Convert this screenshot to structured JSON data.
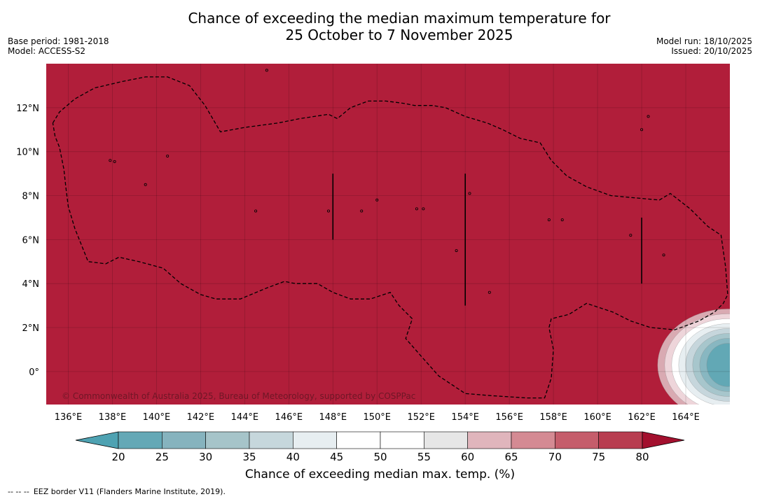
{
  "header": {
    "title_line1": "Chance of exceeding the median maximum temperature for",
    "title_line2": "25 October to 7 November 2025",
    "base_period": "Base period: 1981-2018",
    "model": "Model: ACCESS-S2",
    "model_run": "Model run: 18/10/2025",
    "issued": "Issued: 20/10/2025"
  },
  "map": {
    "background_color": "#b11e3a",
    "lon_range": [
      135.0,
      166.0
    ],
    "lat_range": [
      -1.5,
      14.0
    ],
    "lon_ticks": [
      {
        "value": 136,
        "label": "136°E"
      },
      {
        "value": 138,
        "label": "138°E"
      },
      {
        "value": 140,
        "label": "140°E"
      },
      {
        "value": 142,
        "label": "142°E"
      },
      {
        "value": 144,
        "label": "144°E"
      },
      {
        "value": 146,
        "label": "146°E"
      },
      {
        "value": 148,
        "label": "148°E"
      },
      {
        "value": 150,
        "label": "150°E"
      },
      {
        "value": 152,
        "label": "152°E"
      },
      {
        "value": 154,
        "label": "154°E"
      },
      {
        "value": 156,
        "label": "156°E"
      },
      {
        "value": 158,
        "label": "158°E"
      },
      {
        "value": 160,
        "label": "160°E"
      },
      {
        "value": 162,
        "label": "162°E"
      },
      {
        "value": 164,
        "label": "164°E"
      }
    ],
    "lat_ticks": [
      {
        "value": 0,
        "label": "0°"
      },
      {
        "value": 2,
        "label": "2°N"
      },
      {
        "value": 4,
        "label": "4°N"
      },
      {
        "value": 6,
        "label": "6°N"
      },
      {
        "value": 8,
        "label": "8°N"
      },
      {
        "value": 10,
        "label": "10°N"
      },
      {
        "value": 12,
        "label": "12°N"
      }
    ],
    "copyright": "© Commonwealth of Australia 2025, Bureau of Meteorology, supported by COSPPac",
    "eez_boundary": [
      [
        135.3,
        11.3
      ],
      [
        135.6,
        11.8
      ],
      [
        136.3,
        12.4
      ],
      [
        137.2,
        12.9
      ],
      [
        138.5,
        13.2
      ],
      [
        139.5,
        13.4
      ],
      [
        140.5,
        13.4
      ],
      [
        141.5,
        13.0
      ],
      [
        142.2,
        12.1
      ],
      [
        142.9,
        10.9
      ],
      [
        144.0,
        11.1
      ],
      [
        145.5,
        11.3
      ],
      [
        146.5,
        11.5
      ],
      [
        147.8,
        11.7
      ],
      [
        148.2,
        11.5
      ],
      [
        148.8,
        12.0
      ],
      [
        149.6,
        12.3
      ],
      [
        150.4,
        12.3
      ],
      [
        151.2,
        12.2
      ],
      [
        151.7,
        12.1
      ],
      [
        152.5,
        12.1
      ],
      [
        153.1,
        12.0
      ],
      [
        154.0,
        11.6
      ],
      [
        155.0,
        11.3
      ],
      [
        155.7,
        11.0
      ],
      [
        156.5,
        10.6
      ],
      [
        157.4,
        10.4
      ],
      [
        157.9,
        9.6
      ],
      [
        158.6,
        8.9
      ],
      [
        159.5,
        8.4
      ],
      [
        160.6,
        8.0
      ],
      [
        161.7,
        7.9
      ],
      [
        162.8,
        7.8
      ],
      [
        163.3,
        8.1
      ],
      [
        164.2,
        7.4
      ],
      [
        165.0,
        6.6
      ],
      [
        165.6,
        6.2
      ],
      [
        165.8,
        4.8
      ],
      [
        165.9,
        3.5
      ],
      [
        165.7,
        3.1
      ],
      [
        165.3,
        2.7
      ],
      [
        164.6,
        2.3
      ],
      [
        163.5,
        1.9
      ],
      [
        162.4,
        2.0
      ],
      [
        161.5,
        2.3
      ],
      [
        160.7,
        2.7
      ],
      [
        159.5,
        3.1
      ],
      [
        158.7,
        2.6
      ],
      [
        157.9,
        2.4
      ],
      [
        157.8,
        2.0
      ],
      [
        158.0,
        1.0
      ],
      [
        157.9,
        -0.3
      ],
      [
        157.6,
        -1.2
      ],
      [
        156.8,
        -1.2
      ],
      [
        155.2,
        -1.1
      ],
      [
        154.0,
        -1.0
      ],
      [
        152.8,
        -0.2
      ],
      [
        152.0,
        0.7
      ],
      [
        151.3,
        1.5
      ],
      [
        151.6,
        2.4
      ],
      [
        151.0,
        3.0
      ],
      [
        150.6,
        3.6
      ],
      [
        149.7,
        3.3
      ],
      [
        148.8,
        3.3
      ],
      [
        148.0,
        3.6
      ],
      [
        147.3,
        4.0
      ],
      [
        146.3,
        4.0
      ],
      [
        145.8,
        4.1
      ],
      [
        145.0,
        3.8
      ],
      [
        143.8,
        3.3
      ],
      [
        142.7,
        3.3
      ],
      [
        142.0,
        3.5
      ],
      [
        141.1,
        4.0
      ],
      [
        140.3,
        4.7
      ],
      [
        139.2,
        5.0
      ],
      [
        138.3,
        5.2
      ],
      [
        137.7,
        4.9
      ],
      [
        136.9,
        5.0
      ],
      [
        136.3,
        6.5
      ],
      [
        136.0,
        7.5
      ],
      [
        135.9,
        8.3
      ],
      [
        135.8,
        9.2
      ],
      [
        135.6,
        10.2
      ],
      [
        135.4,
        10.7
      ],
      [
        135.3,
        11.3
      ]
    ],
    "marker_lines": [
      {
        "lon": 148.0,
        "lat_from": 6.0,
        "lat_to": 9.0
      },
      {
        "lon": 154.0,
        "lat_from": 3.0,
        "lat_to": 9.0
      },
      {
        "lon": 162.0,
        "lat_from": 4.0,
        "lat_to": 7.0
      }
    ],
    "islands": [
      [
        145.0,
        13.7
      ],
      [
        138.1,
        9.55
      ],
      [
        157.8,
        6.9
      ],
      [
        163.0,
        5.3
      ],
      [
        151.8,
        7.4
      ],
      [
        152.1,
        7.4
      ],
      [
        153.6,
        5.5
      ],
      [
        154.2,
        8.1
      ],
      [
        155.1,
        3.6
      ],
      [
        158.4,
        6.9
      ],
      [
        162.0,
        11.0
      ],
      [
        162.3,
        11.6
      ],
      [
        137.9,
        9.6
      ],
      [
        150.0,
        7.8
      ],
      [
        161.5,
        6.2
      ],
      [
        149.3,
        7.3
      ],
      [
        147.8,
        7.3
      ],
      [
        140.5,
        9.8
      ],
      [
        139.5,
        8.5
      ],
      [
        144.5,
        7.3
      ]
    ],
    "warm_blob_colors": [
      "#d9aab2",
      "#eed5da",
      "#ffffff",
      "#e7eef1",
      "#c6d6dc",
      "#a7c6cc",
      "#88b7c1",
      "#62a8b5"
    ]
  },
  "colorbar": {
    "title": "Chance of exceeding median max. temp. (%)",
    "labels": [
      "20",
      "25",
      "30",
      "35",
      "40",
      "45",
      "50",
      "55",
      "60",
      "65",
      "70",
      "75",
      "80"
    ],
    "low_extend_color": "#4ea2b2",
    "high_extend_color": "#a3102e",
    "segment_colors": [
      "#64a8b6",
      "#86b3be",
      "#a6c4c9",
      "#c6d7dc",
      "#e7eef1",
      "#ffffff",
      "#ffffff",
      "#e6e6e6",
      "#e0b5bc",
      "#d48a93",
      "#c55d6b",
      "#b83d50"
    ]
  },
  "footnote": {
    "dashes": "--  --  --",
    "text": "EEZ border V11 (Flanders Marine Institute, 2019)."
  }
}
